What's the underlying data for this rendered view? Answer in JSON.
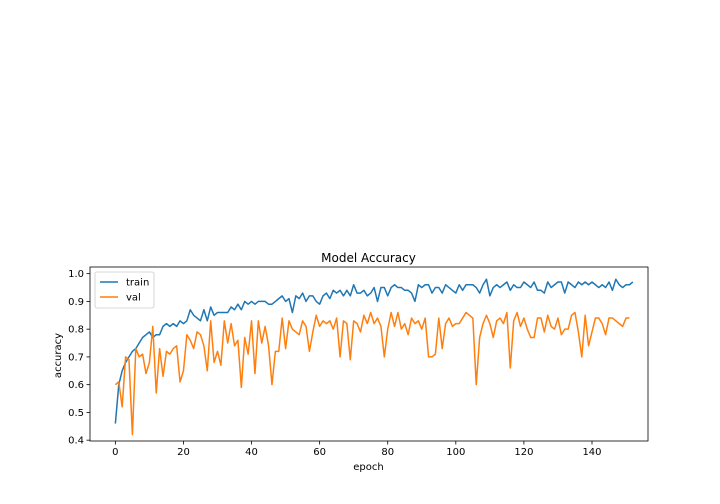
{
  "chart_data": {
    "type": "line",
    "title": "Model Accuracy",
    "xlabel": "epoch",
    "ylabel": "accuracy",
    "xlim": [
      -7.45,
      156.45
    ],
    "ylim": [
      0.397,
      1.024
    ],
    "xticks": [
      0,
      20,
      40,
      60,
      80,
      100,
      120,
      140
    ],
    "yticks": [
      0.4,
      0.5,
      0.6,
      0.7,
      0.8,
      0.9,
      1.0
    ],
    "ytick_labels": [
      "0.4",
      "0.5",
      "0.6",
      "0.7",
      "0.8",
      "0.9",
      "1.0"
    ],
    "legend_position": "upper-left",
    "grid": false,
    "series": [
      {
        "name": "train",
        "color": "#1f77b4",
        "values": [
          0.46,
          0.6,
          0.65,
          0.68,
          0.7,
          0.72,
          0.73,
          0.75,
          0.77,
          0.78,
          0.79,
          0.77,
          0.78,
          0.78,
          0.81,
          0.82,
          0.81,
          0.82,
          0.81,
          0.83,
          0.82,
          0.83,
          0.87,
          0.85,
          0.84,
          0.83,
          0.87,
          0.83,
          0.88,
          0.85,
          0.86,
          0.86,
          0.86,
          0.86,
          0.88,
          0.87,
          0.89,
          0.87,
          0.9,
          0.89,
          0.9,
          0.89,
          0.9,
          0.9,
          0.9,
          0.89,
          0.89,
          0.9,
          0.91,
          0.92,
          0.9,
          0.91,
          0.86,
          0.92,
          0.91,
          0.93,
          0.9,
          0.92,
          0.92,
          0.9,
          0.89,
          0.92,
          0.93,
          0.91,
          0.94,
          0.93,
          0.94,
          0.92,
          0.94,
          0.92,
          0.96,
          0.93,
          0.93,
          0.94,
          0.92,
          0.93,
          0.95,
          0.9,
          0.95,
          0.95,
          0.92,
          0.95,
          0.96,
          0.95,
          0.95,
          0.94,
          0.94,
          0.93,
          0.9,
          0.96,
          0.95,
          0.96,
          0.96,
          0.93,
          0.95,
          0.95,
          0.93,
          0.96,
          0.95,
          0.94,
          0.93,
          0.96,
          0.94,
          0.96,
          0.96,
          0.96,
          0.95,
          0.93,
          0.96,
          0.98,
          0.92,
          0.95,
          0.96,
          0.95,
          0.96,
          0.97,
          0.94,
          0.96,
          0.95,
          0.95,
          0.97,
          0.96,
          0.95,
          0.97,
          0.94,
          0.94,
          0.93,
          0.97,
          0.95,
          0.96,
          0.97,
          0.97,
          0.93,
          0.97,
          0.96,
          0.95,
          0.97,
          0.96,
          0.97,
          0.96,
          0.97,
          0.96,
          0.95,
          0.96,
          0.95,
          0.97,
          0.94,
          0.98,
          0.96,
          0.95,
          0.96,
          0.96,
          0.97
        ]
      },
      {
        "name": "val",
        "color": "#ff7f0e",
        "values": [
          0.6,
          0.61,
          0.52,
          0.7,
          0.69,
          0.42,
          0.73,
          0.7,
          0.71,
          0.64,
          0.68,
          0.81,
          0.57,
          0.73,
          0.63,
          0.72,
          0.71,
          0.73,
          0.74,
          0.61,
          0.65,
          0.78,
          0.76,
          0.73,
          0.79,
          0.78,
          0.74,
          0.65,
          0.83,
          0.68,
          0.72,
          0.67,
          0.83,
          0.75,
          0.82,
          0.74,
          0.76,
          0.59,
          0.77,
          0.71,
          0.83,
          0.64,
          0.83,
          0.75,
          0.81,
          0.74,
          0.6,
          0.72,
          0.72,
          0.84,
          0.73,
          0.83,
          0.8,
          0.79,
          0.78,
          0.83,
          0.81,
          0.72,
          0.79,
          0.85,
          0.81,
          0.83,
          0.82,
          0.83,
          0.8,
          0.84,
          0.7,
          0.83,
          0.82,
          0.69,
          0.83,
          0.82,
          0.79,
          0.85,
          0.82,
          0.86,
          0.82,
          0.84,
          0.81,
          0.7,
          0.8,
          0.86,
          0.81,
          0.86,
          0.8,
          0.82,
          0.78,
          0.84,
          0.82,
          0.83,
          0.8,
          0.84,
          0.7,
          0.7,
          0.71,
          0.84,
          0.73,
          0.82,
          0.84,
          0.81,
          0.82,
          0.82,
          0.84,
          0.86,
          0.85,
          0.84,
          0.6,
          0.77,
          0.82,
          0.85,
          0.82,
          0.77,
          0.83,
          0.84,
          0.82,
          0.86,
          0.66,
          0.83,
          0.86,
          0.81,
          0.84,
          0.8,
          0.77,
          0.77,
          0.84,
          0.84,
          0.79,
          0.85,
          0.81,
          0.8,
          0.84,
          0.78,
          0.8,
          0.8,
          0.85,
          0.86,
          0.79,
          0.7,
          0.85,
          0.74,
          0.79,
          0.84,
          0.84,
          0.82,
          0.78,
          0.84,
          0.84,
          0.83,
          0.82,
          0.81,
          0.84,
          0.84
        ]
      }
    ]
  }
}
